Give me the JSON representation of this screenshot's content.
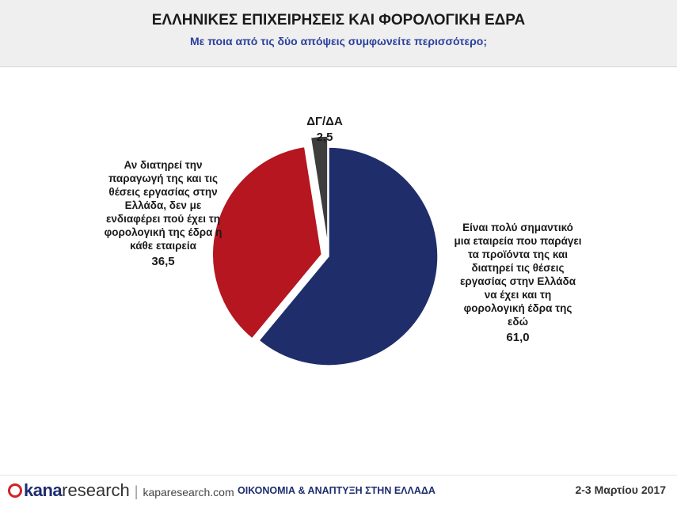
{
  "header": {
    "title": "ΕΛΛΗΝΙΚΕΣ ΕΠΙΧΕΙΡΗΣΕΙΣ ΚΑΙ ΦΟΡΟΛΟΓΙΚΗ ΕΔΡΑ",
    "subtitle": "Με ποια από τις δύο απόψεις συμφωνείτε περισσότερο;"
  },
  "chart_data": {
    "type": "pie",
    "title": "ΕΛΛΗΝΙΚΕΣ ΕΠΙΧΕΙΡΗΣΕΙΣ ΚΑΙ ΦΟΡΟΛΟΓΙΚΗ ΕΔΡΑ",
    "subtitle": "Με ποια από τις δύο απόψεις συμφωνείτε περισσότερο;",
    "slices": [
      {
        "label": "Είναι πολύ σημαντικό μια εταιρεία που παράγει τα προϊόντα της και διατηρεί τις θέσεις εργασίας στην Ελλάδα να έχει και τη φορολογική έδρα της εδώ",
        "value": 61.0,
        "value_label": "61,0",
        "color": "#1f2e6b"
      },
      {
        "label": "Αν διατηρεί την παραγωγή της και τις θέσεις εργασίας στην Ελλάδα, δεν με ενδιαφέρει πού έχει τη φορολογική της έδρα η κάθε εταιρεία",
        "value": 36.5,
        "value_label": "36,5",
        "color": "#b5161f"
      },
      {
        "label": "ΔΓ/ΔΑ",
        "value": 2.5,
        "value_label": "2,5",
        "color": "#3d3d3d"
      }
    ]
  },
  "labels": {
    "slice_0_text": "Είναι πολύ σημαντικό\nμια εταιρεία που παράγει\nτα προϊόντα της και\nδιατηρεί τις θέσεις\nεργασίας στην Ελλάδα\nνα έχει και τη\nφορολογική έδρα της\nεδώ",
    "slice_1_text": "Αν διατηρεί την\nπαραγωγή της και τις\nθέσεις εργασίας στην\nΕλλάδα, δεν με\nενδιαφέρει πού έχει τη\nφορολογική της έδρα η\nκάθε εταιρεία",
    "slice_2_text": "ΔΓ/ΔΑ"
  },
  "footer": {
    "brand_kana": "kana",
    "brand_research": "research",
    "separator": "|",
    "url": "kaparesearch.com",
    "center_text": "ΟΙΚΟΝΟΜΙΑ & ΑΝΑΠΤΥΞΗ ΣΤΗΝ ΕΛΛΑΔΑ",
    "date": "2-3 Μαρτίου 2017"
  }
}
